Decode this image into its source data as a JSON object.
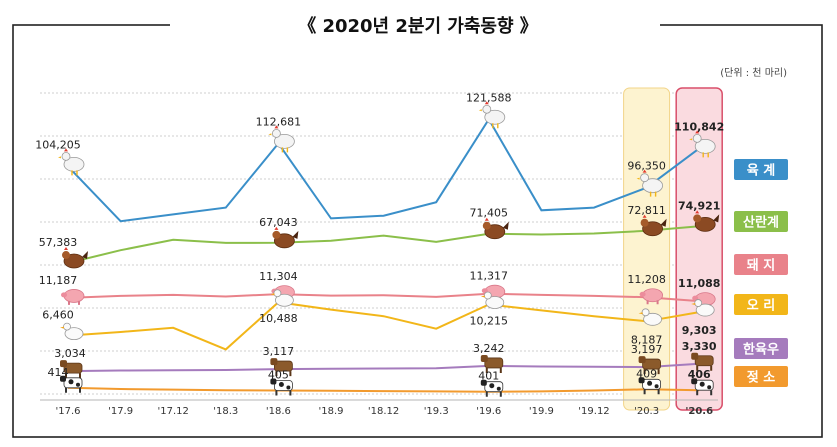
{
  "title": "《 2020년 2분기 가축동향 》",
  "unit_note": "(단위 : 천 마리)",
  "chart_data": {
    "type": "line",
    "x": [
      "'17.6",
      "'17.9",
      "'17.12",
      "'18.3",
      "'18.6",
      "'18.9",
      "'18.12",
      "'19.3",
      "'19.6",
      "'19.9",
      "'19.12",
      "'20.3",
      "'20.6"
    ],
    "series": [
      {
        "name": "육  계",
        "color": "#3a8fc9",
        "values": [
          104205,
          84000,
          86500,
          89000,
          112681,
          85000,
          86000,
          91000,
          121588,
          88000,
          89000,
          96350,
          110842
        ],
        "labels": {
          "0": "104,205",
          "4": "112,681",
          "8": "121,588",
          "11": "96,350",
          "12": "110,842"
        }
      },
      {
        "name": "산란계",
        "color": "#8bbf4a",
        "values": [
          57383,
          63500,
          68500,
          67000,
          67043,
          68000,
          70500,
          67500,
          71405,
          71000,
          71500,
          72811,
          74921
        ],
        "labels": {
          "0": "57,383",
          "4": "67,043",
          "8": "71,405",
          "11": "72,811",
          "12": "74,921"
        }
      },
      {
        "name": "돼  지",
        "color": "#e9828a",
        "values": [
          11187,
          11250,
          11280,
          11230,
          11304,
          11260,
          11270,
          11220,
          11317,
          11280,
          11250,
          11208,
          11088
        ],
        "labels": {
          "0": "11,187",
          "4": "11,304",
          "8": "11,317",
          "11": "11,208",
          "12": "11,088"
        }
      },
      {
        "name": "오  리",
        "color": "#f2b619",
        "values": [
          6460,
          6900,
          7400,
          4800,
          10488,
          9600,
          8800,
          7300,
          10215,
          9500,
          8800,
          8187,
          9303
        ],
        "labels": {
          "0": "6,460",
          "4": "10,488",
          "8": "10,215",
          "11": "8,187",
          "12": "9,303"
        }
      },
      {
        "name": "한육우",
        "color": "#a57bbd",
        "values": [
          3034,
          3060,
          3070,
          3080,
          3117,
          3130,
          3140,
          3150,
          3242,
          3220,
          3210,
          3197,
          3330
        ],
        "labels": {
          "0": "3,034",
          "4": "3,117",
          "8": "3,242",
          "11": "3,197",
          "12": "3,330"
        }
      },
      {
        "name": "젖  소",
        "color": "#f29a2e",
        "values": [
          414,
          410,
          408,
          406,
          405,
          404,
          403,
          402,
          401,
          402,
          405,
          409,
          406
        ],
        "labels": {
          "0": "414",
          "4": "405",
          "8": "401",
          "11": "409",
          "12": "406"
        }
      }
    ],
    "highlight": [
      {
        "index": 11,
        "color": "#fdf3d0",
        "border": "#f2d488"
      },
      {
        "index": 12,
        "color": "#fadbe0",
        "border": "#d94f6a"
      }
    ],
    "legend": "right",
    "grid": "horizontal-dotted"
  }
}
